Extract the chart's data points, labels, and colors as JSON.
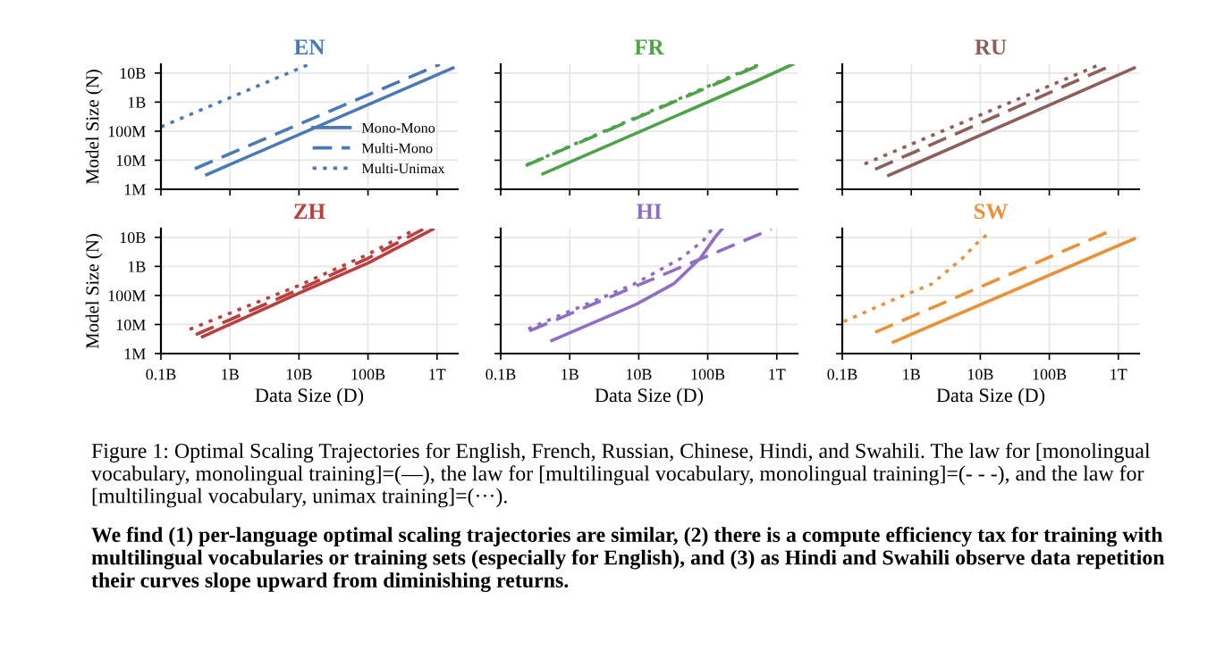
{
  "chart_data": [
    {
      "type": "line",
      "title": "EN",
      "ylabel": "Model Size (N)",
      "log": "xy",
      "grid": true,
      "legend": "bottom right",
      "tick_labels": "y",
      "xlim": [
        100000000.0,
        2000000000000.0
      ],
      "ylim": [
        1000000.0,
        20000000000.0
      ],
      "xticks": [
        {
          "value": 100000000.0,
          "label": null
        },
        {
          "value": 1000000000.0,
          "label": null
        },
        {
          "value": 10000000000.0,
          "label": null
        },
        {
          "value": 100000000000.0,
          "label": null
        },
        {
          "value": 1000000000000.0,
          "label": null
        }
      ],
      "yticks": [
        {
          "value": 1000000.0,
          "label": "1M"
        },
        {
          "value": 10000000.0,
          "label": "10M"
        },
        {
          "value": 100000000.0,
          "label": "100M"
        },
        {
          "value": 1000000000.0,
          "label": "1B"
        },
        {
          "value": 10000000000.0,
          "label": "10B"
        }
      ],
      "series": [
        {
          "name": "Mono-Mono",
          "color": "#4a7ab5",
          "line_style": "solid",
          "x": [
            460000000.0,
            1700000000000.0
          ],
          "values": [
            3200000.0,
            15000000000.0
          ]
        },
        {
          "name": "Multi-Mono",
          "color": "#4a7ab5",
          "line_style": "dashed",
          "x": [
            310000000.0,
            1100000000000.0
          ],
          "values": [
            5100000.0,
            20000000000.0
          ]
        },
        {
          "name": "Multi-Unimax",
          "color": "#4a7ab5",
          "line_style": "dotted",
          "x": [
            100000000.0,
            14000000000.0
          ],
          "values": [
            140000000.0,
            20000000000.0
          ]
        }
      ]
    },
    {
      "type": "line",
      "title": "FR",
      "log": "xy",
      "grid": true,
      "tick_labels": false,
      "xlim": [
        100000000.0,
        2000000000000.0
      ],
      "ylim": [
        1000000.0,
        20000000000.0
      ],
      "xticks": [
        {
          "value": 100000000.0,
          "label": null
        },
        {
          "value": 1000000000.0,
          "label": null
        },
        {
          "value": 10000000000.0,
          "label": null
        },
        {
          "value": 100000000000.0,
          "label": null
        },
        {
          "value": 1000000000000.0,
          "label": null
        }
      ],
      "yticks": [
        {
          "value": 1000000.0,
          "label": null
        },
        {
          "value": 10000000.0,
          "label": null
        },
        {
          "value": 100000000.0,
          "label": null
        },
        {
          "value": 1000000000.0,
          "label": null
        },
        {
          "value": 10000000000.0,
          "label": null
        }
      ],
      "series": [
        {
          "color": "#4ea24a",
          "line_style": "solid",
          "x": [
            410000000.0,
            520000000000.0,
            1700000000000.0
          ],
          "values": [
            3400000.0,
            5500000000.0,
            20000000000.0
          ]
        },
        {
          "color": "#4ea24a",
          "line_style": "dashed",
          "x": [
            230000000.0,
            600000000000.0
          ],
          "values": [
            6500000.0,
            20000000000.0
          ]
        },
        {
          "color": "#4ea24a",
          "line_style": "dotted",
          "x": [
            240000000.0,
            550000000000.0
          ],
          "values": [
            7000000.0,
            20000000000.0
          ]
        }
      ]
    },
    {
      "type": "line",
      "title": "RU",
      "log": "xy",
      "grid": true,
      "tick_labels": false,
      "xlim": [
        100000000.0,
        2000000000000.0
      ],
      "ylim": [
        1000000.0,
        20000000000.0
      ],
      "xticks": [
        {
          "value": 100000000.0,
          "label": null
        },
        {
          "value": 1000000000.0,
          "label": null
        },
        {
          "value": 10000000000.0,
          "label": null
        },
        {
          "value": 100000000000.0,
          "label": null
        },
        {
          "value": 1000000000000.0,
          "label": null
        }
      ],
      "yticks": [
        {
          "value": 1000000.0,
          "label": null
        },
        {
          "value": 10000000.0,
          "label": null
        },
        {
          "value": 100000000.0,
          "label": null
        },
        {
          "value": 1000000000.0,
          "label": null
        },
        {
          "value": 10000000000.0,
          "label": null
        }
      ],
      "series": [
        {
          "color": "#8c5f5a",
          "line_style": "solid",
          "x": [
            470000000.0,
            1700000000000.0
          ],
          "values": [
            3000000.0,
            15000000000.0
          ]
        },
        {
          "color": "#8c5f5a",
          "line_style": "dashed",
          "x": [
            300000000.0,
            870000000000.0
          ],
          "values": [
            4900000.0,
            20000000000.0
          ]
        },
        {
          "color": "#8c5f5a",
          "line_style": "dotted",
          "x": [
            210000000.0,
            550000000000.0
          ],
          "values": [
            7400000.0,
            20000000000.0
          ]
        }
      ]
    },
    {
      "type": "line",
      "title": "ZH",
      "xlabel": "Data Size (D)",
      "ylabel": "Model Size (N)",
      "log": "xy",
      "grid": true,
      "xlim": [
        100000000.0,
        2000000000000.0
      ],
      "ylim": [
        1000000.0,
        20000000000.0
      ],
      "xticks": [
        {
          "value": 100000000.0,
          "label": "0.1B"
        },
        {
          "value": 1000000000.0,
          "label": "1B"
        },
        {
          "value": 10000000000.0,
          "label": "10B"
        },
        {
          "value": 100000000000.0,
          "label": "100B"
        },
        {
          "value": 1000000000000.0,
          "label": "1T"
        }
      ],
      "yticks": [
        {
          "value": 1000000.0,
          "label": "1M"
        },
        {
          "value": 10000000.0,
          "label": "10M"
        },
        {
          "value": 100000000.0,
          "label": "100M"
        },
        {
          "value": 1000000000.0,
          "label": "1B"
        },
        {
          "value": 10000000000.0,
          "label": "10B"
        }
      ],
      "series": [
        {
          "color": "#b94040",
          "line_style": "solid",
          "x": [
            400000000.0,
            10000000000.0,
            100000000000.0,
            870000000000.0
          ],
          "values": [
            3800000.0,
            120000000.0,
            1300000000.0,
            19000000000.0
          ]
        },
        {
          "color": "#b94040",
          "line_style": "dashed",
          "x": [
            320000000.0,
            10000000000.0,
            100000000000.0,
            630000000000.0
          ],
          "values": [
            4500000.0,
            160000000.0,
            1900000000.0,
            19000000000.0
          ]
        },
        {
          "color": "#b94040",
          "line_style": "dotted",
          "x": [
            260000000.0,
            10000000000.0,
            100000000000.0,
            490000000000.0
          ],
          "values": [
            6800000.0,
            220000000.0,
            2600000000.0,
            19000000000.0
          ]
        }
      ]
    },
    {
      "type": "line",
      "title": "HI",
      "xlabel": "Data Size (D)",
      "log": "xy",
      "grid": true,
      "tick_labels": "x",
      "xlim": [
        100000000.0,
        2000000000000.0
      ],
      "ylim": [
        1000000.0,
        20000000000.0
      ],
      "xticks": [
        {
          "value": 100000000.0,
          "label": "0.1B"
        },
        {
          "value": 1000000000.0,
          "label": "1B"
        },
        {
          "value": 10000000000.0,
          "label": "10B"
        },
        {
          "value": 100000000000.0,
          "label": "100B"
        },
        {
          "value": 1000000000000.0,
          "label": "1T"
        }
      ],
      "yticks": [
        {
          "value": 1000000.0,
          "label": null
        },
        {
          "value": 10000000.0,
          "label": null
        },
        {
          "value": 100000000.0,
          "label": null
        },
        {
          "value": 1000000000.0,
          "label": null
        },
        {
          "value": 10000000000.0,
          "label": null
        }
      ],
      "series": [
        {
          "color": "#8f6fc4",
          "line_style": "solid",
          "x": [
            550000000.0,
            9300000000.0,
            32000000000.0,
            78000000000.0,
            130000000000.0,
            160000000000.0
          ],
          "values": [
            2800000.0,
            50000000.0,
            250000000.0,
            1900000000.0,
            10700000000.0,
            19000000000.0
          ]
        },
        {
          "color": "#8f6fc4",
          "line_style": "dashed",
          "x": [
            260000000.0,
            830000000000.0
          ],
          "values": [
            6000000.0,
            19000000000.0
          ]
        },
        {
          "color": "#8f6fc4",
          "line_style": "dotted",
          "x": [
            250000000.0,
            8700000000.0,
            41000000000.0,
            87000000000.0,
            115000000000.0
          ],
          "values": [
            7100000.0,
            250000000.0,
            1900000000.0,
            7900000000.0,
            19000000000.0
          ]
        }
      ]
    },
    {
      "type": "line",
      "title": "SW",
      "xlabel": "Data Size (D)",
      "log": "xy",
      "grid": true,
      "tick_labels": "x",
      "xlim": [
        100000000.0,
        2000000000000.0
      ],
      "ylim": [
        1000000.0,
        20000000000.0
      ],
      "xticks": [
        {
          "value": 100000000.0,
          "label": "0.1B"
        },
        {
          "value": 1000000000.0,
          "label": "1B"
        },
        {
          "value": 10000000000.0,
          "label": "10B"
        },
        {
          "value": 100000000000.0,
          "label": "100B"
        },
        {
          "value": 1000000000000.0,
          "label": "1T"
        }
      ],
      "yticks": [
        {
          "value": 1000000.0,
          "label": null
        },
        {
          "value": 10000000.0,
          "label": null
        },
        {
          "value": 100000000.0,
          "label": null
        },
        {
          "value": 1000000000.0,
          "label": null
        },
        {
          "value": 10000000000.0,
          "label": null
        }
      ],
      "series": [
        {
          "color": "#e8923a",
          "line_style": "solid",
          "x": [
            550000000.0,
            1700000000000.0
          ],
          "values": [
            2500000.0,
            8900000000.0
          ]
        },
        {
          "color": "#e8923a",
          "line_style": "dashed",
          "x": [
            300000000.0,
            870000000000.0
          ],
          "values": [
            5400000.0,
            19000000000.0
          ]
        },
        {
          "color": "#e8923a",
          "line_style": "dotted",
          "x": [
            105000000.0,
            550000000.0,
            2000000000.0,
            5500000000.0,
            9800000000.0,
            13500000000.0
          ],
          "values": [
            12600000.0,
            71000000.0,
            250000000.0,
            1900000000.0,
            7900000000.0,
            14000000000.0
          ]
        }
      ]
    },
    {
      "type": "other",
      "annotations": [
        "Figure 1: Optimal Scaling Trajectories for English, French, Russian, Chinese, Hindi, and Swahili. The law for [monolingual vocabulary, monolingual training]=(—), the law for [multilingual vocabulary, monolingual training]=(- - -), and the law for [multilingual vocabulary, unimax training]=(···).",
        "We find (1) per-language optimal scaling trajectories are similar, (2) there is a compute efficiency tax for training with multilingual vocabularies or training sets (especially for English), and (3) as Hindi and Swahili observe data repetition their curves slope upward from diminishing returns."
      ]
    }
  ]
}
